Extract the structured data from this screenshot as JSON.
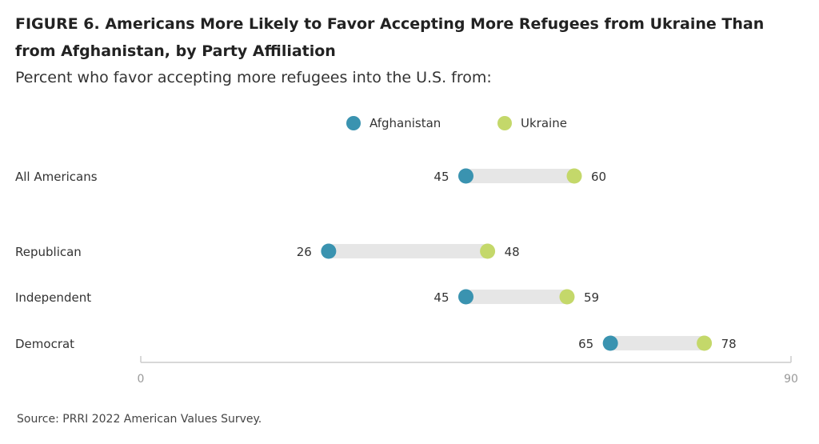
{
  "figure": {
    "title": "FIGURE 6.  Americans More Likely to Favor Accepting More Refugees from Ukraine Than from Afghanistan, by Party Affiliation",
    "subtitle": "Percent who favor accepting more refugees into the U.S. from:",
    "source": "Source: PRRI 2022 American Values Survey."
  },
  "chart_data": {
    "type": "dumbbell",
    "title": "FIGURE 6.  Americans More Likely to Favor Accepting More Refugees from Ukraine Than from Afghanistan, by Party Affiliation",
    "subtitle": "Percent who favor accepting more refugees into the U.S. from:",
    "categories": [
      "All Americans",
      "Republican",
      "Independent",
      "Democrat"
    ],
    "series": [
      {
        "name": "Afghanistan",
        "color": "#3a93b0",
        "values": [
          45,
          26,
          45,
          65
        ]
      },
      {
        "name": "Ukraine",
        "color": "#c4d86a",
        "values": [
          60,
          48,
          59,
          78
        ]
      }
    ],
    "xlim": [
      0,
      90
    ],
    "xticks": [
      "0",
      "90"
    ],
    "legend_placement": "top-center",
    "grid": false,
    "range_bar_color": "#e6e6e6",
    "axis_color": "#cccccc"
  }
}
